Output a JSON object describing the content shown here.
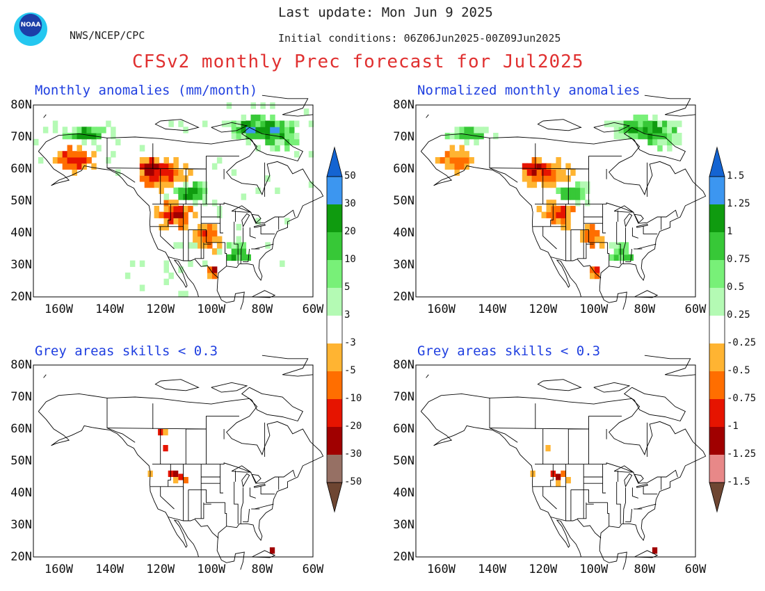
{
  "header": {
    "logo_text": "NOAA",
    "agency": "NWS/NCEP/CPC",
    "last_update": "Last update: Mon Jun 9 2025",
    "initial_conditions": "Initial conditions: 06Z06Jun2025-00Z09Jun2025",
    "main_title": "CFSv2 monthly Prec forecast for Jul2025"
  },
  "panels": [
    {
      "title": "Monthly anomalies (mm/month)",
      "style": "anomaly"
    },
    {
      "title": "Normalized monthly anomalies",
      "style": "anomaly"
    },
    {
      "title": "Grey areas skills < 0.3",
      "style": "skill"
    },
    {
      "title": "Grey areas skills < 0.3",
      "style": "skill"
    }
  ],
  "axes": {
    "lat_labels": [
      "80N",
      "70N",
      "60N",
      "50N",
      "40N",
      "30N",
      "20N"
    ],
    "lon_labels": [
      "160W",
      "140W",
      "120W",
      "100W",
      "80W",
      "60W"
    ],
    "lat_range": [
      20,
      80
    ],
    "lon_range": [
      -170,
      -60
    ]
  },
  "colorbars": [
    {
      "name": "mm-month",
      "labels": [
        "50",
        "30",
        "20",
        "10",
        "5",
        "3",
        "-3",
        "-5",
        "-10",
        "-20",
        "-30",
        "-50"
      ]
    },
    {
      "name": "normalized",
      "labels": [
        "1.5",
        "1.25",
        "1",
        "0.75",
        "0.5",
        "0.25",
        "-0.25",
        "-0.5",
        "-0.75",
        "-1",
        "-1.25",
        "-1.5"
      ]
    }
  ],
  "colors": {
    "wet": [
      "#1464d2",
      "#3c96f0",
      "#0f9b0f",
      "#37c837",
      "#78f078",
      "#b4fab4"
    ],
    "neutral": "#ffffff",
    "dry": [
      "#ffb432",
      "#ff6e00",
      "#e61400",
      "#a00000",
      "#967064",
      "#6e4632"
    ],
    "dry_norm": [
      "#ffb432",
      "#ff6e00",
      "#e61400",
      "#a00000",
      "#e88888",
      "#6e4632"
    ],
    "grey_mask": "#c8c8c8",
    "title_red": "#e03030",
    "title_blue": "#1f3fe0"
  }
}
